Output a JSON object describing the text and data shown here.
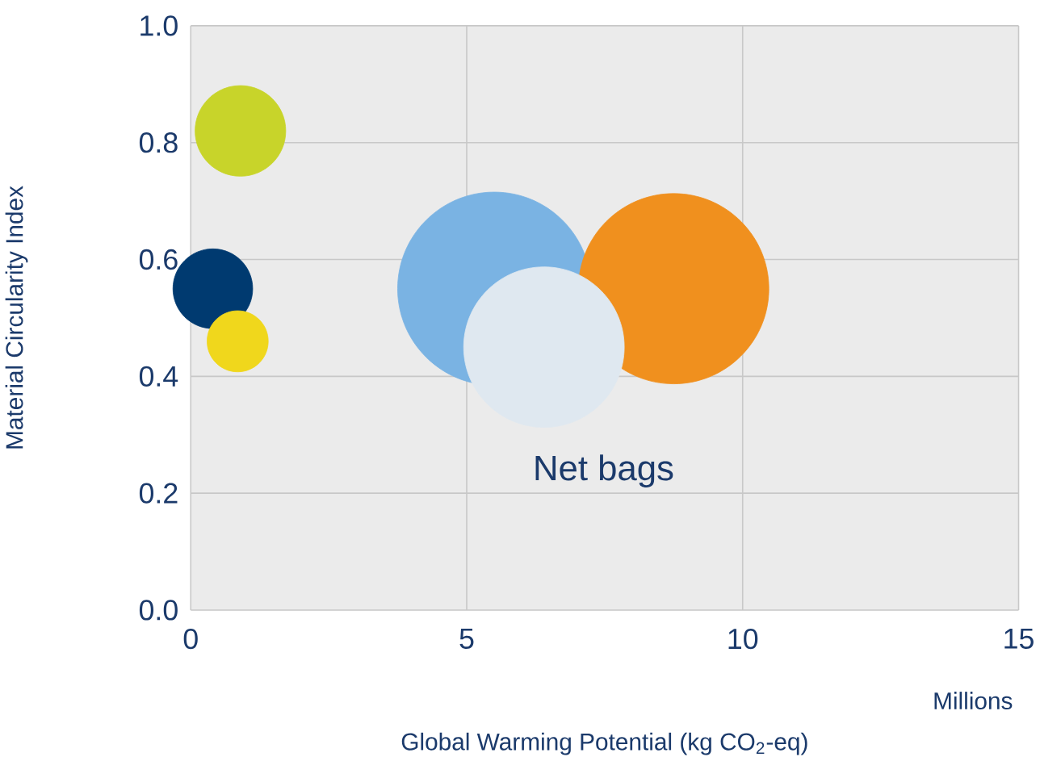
{
  "chart_data": {
    "type": "bubble",
    "xlabel": "Global Warming Potential (kg CO$_{2}$-eq)",
    "ylabel": "Material Circularity Index",
    "annotations": [
      "Millions"
    ],
    "xlim": [
      0,
      15
    ],
    "xticks": [
      0,
      5,
      10,
      15
    ],
    "ylim": [
      0,
      1
    ],
    "yticks": [
      {
        "value": 0,
        "label": "0.0"
      },
      {
        "value": 0.2,
        "label": "0.2"
      },
      {
        "value": 0.4,
        "label": "0.4"
      },
      {
        "value": 0.6,
        "label": "0.6"
      },
      {
        "value": 0.8,
        "label": "0.8"
      },
      {
        "value": 1,
        "label": "1.0"
      }
    ],
    "grid": true,
    "series": [
      {
        "color": "#c8d42a",
        "x": [
          0.9
        ],
        "values": [
          0.82
        ],
        "sizes": [
          0.22
        ]
      },
      {
        "color": "#003a70",
        "x": [
          0.4
        ],
        "values": [
          0.55
        ],
        "sizes": [
          0.17
        ]
      },
      {
        "color": "#f0d71c",
        "x": [
          0.85
        ],
        "values": [
          0.46
        ],
        "sizes": [
          0.1
        ]
      },
      {
        "color": "#7ab3e3",
        "x": [
          5.5
        ],
        "values": [
          0.55
        ],
        "sizes": [
          1
        ]
      },
      {
        "color": "#f0901e",
        "x": [
          8.75
        ],
        "values": [
          0.55
        ],
        "sizes": [
          0.97
        ]
      },
      {
        "name": "Net bags",
        "color": "#dfe8f0",
        "x": [
          6.4
        ],
        "values": [
          0.45
        ],
        "sizes": [
          0.69
        ]
      }
    ]
  }
}
